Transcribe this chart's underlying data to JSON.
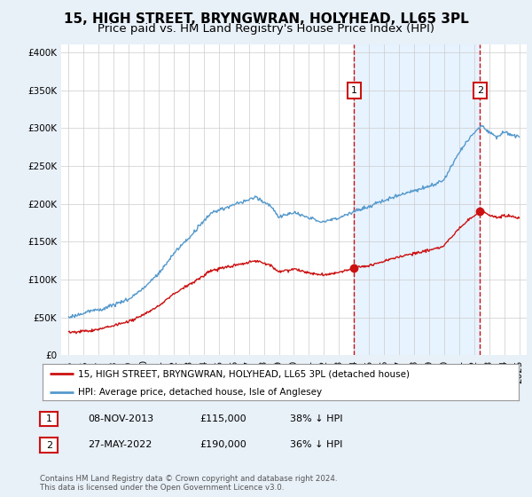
{
  "title": "15, HIGH STREET, BRYNGWRAN, HOLYHEAD, LL65 3PL",
  "subtitle": "Price paid vs. HM Land Registry's House Price Index (HPI)",
  "legend_line1": "15, HIGH STREET, BRYNGWRAN, HOLYHEAD, LL65 3PL (detached house)",
  "legend_line2": "HPI: Average price, detached house, Isle of Anglesey",
  "annotation1_label": "1",
  "annotation1_date": "08-NOV-2013",
  "annotation1_price": "£115,000",
  "annotation1_hpi": "38% ↓ HPI",
  "annotation1_year": 2014.0,
  "annotation1_value": 115000,
  "annotation2_label": "2",
  "annotation2_date": "27-MAY-2022",
  "annotation2_price": "£190,000",
  "annotation2_hpi": "36% ↓ HPI",
  "annotation2_year": 2022.4,
  "annotation2_value": 190000,
  "footer": "Contains HM Land Registry data © Crown copyright and database right 2024.\nThis data is licensed under the Open Government Licence v3.0.",
  "ylim": [
    0,
    410000
  ],
  "xlim_start": 1994.5,
  "xlim_end": 2025.5,
  "background_color": "#e8f0f8",
  "plot_bg_color": "#ffffff",
  "shaded_bg_color": "#ddeeff",
  "hpi_color": "#5599cc",
  "price_color": "#cc1111",
  "grid_color": "#cccccc",
  "vline_color": "#cc1111",
  "annotation_box_color": "#cc1111",
  "title_fontsize": 11,
  "subtitle_fontsize": 9.5,
  "tick_fontsize": 7.5
}
